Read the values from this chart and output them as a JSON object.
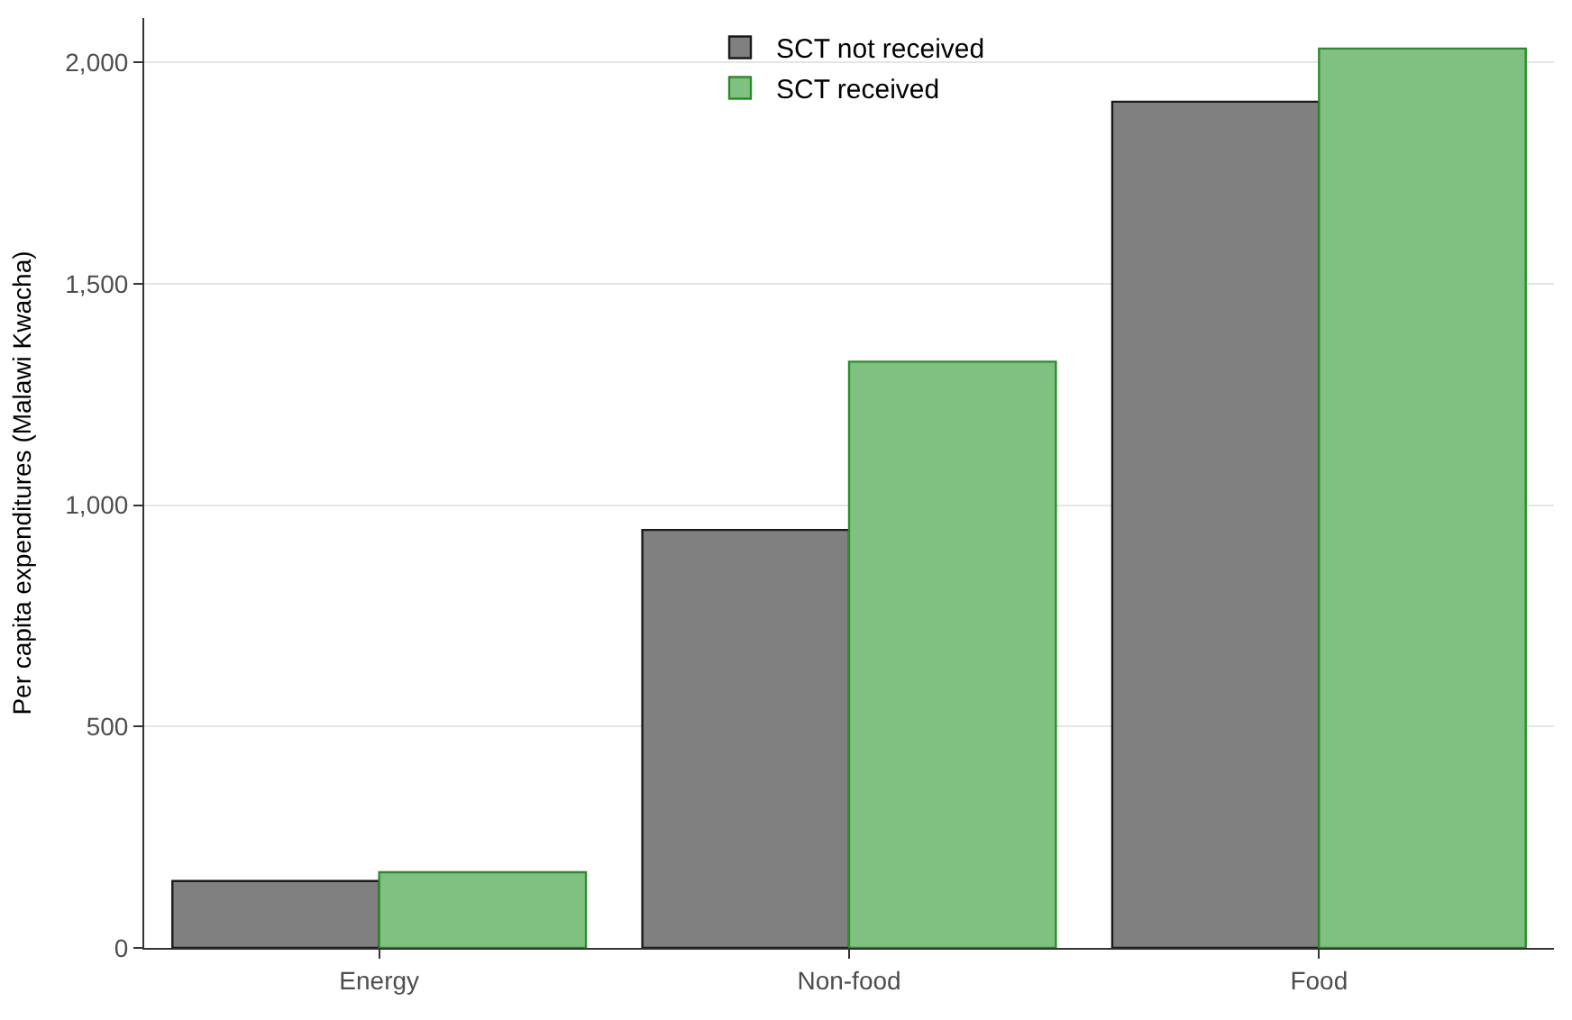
{
  "chart_data": {
    "type": "bar",
    "ylabel": "Per capita expenditures (Malawi Kwacha)",
    "categories": [
      "Energy",
      "Non-food",
      "Food"
    ],
    "series": [
      {
        "name": "SCT not received",
        "color": "#808080",
        "values": [
          151,
          944,
          1911
        ]
      },
      {
        "name": "SCT received",
        "color": "#80c080",
        "values": [
          171,
          1324,
          2031
        ]
      }
    ],
    "ylim": [
      0,
      2100
    ],
    "yticks": [
      {
        "value": 0,
        "label": "0"
      },
      {
        "value": 500,
        "label": "500"
      },
      {
        "value": 1000,
        "label": "1,000"
      },
      {
        "value": 1500,
        "label": "1,500"
      },
      {
        "value": 2000,
        "label": "2,000"
      }
    ],
    "grid": "y",
    "legend": "top"
  }
}
